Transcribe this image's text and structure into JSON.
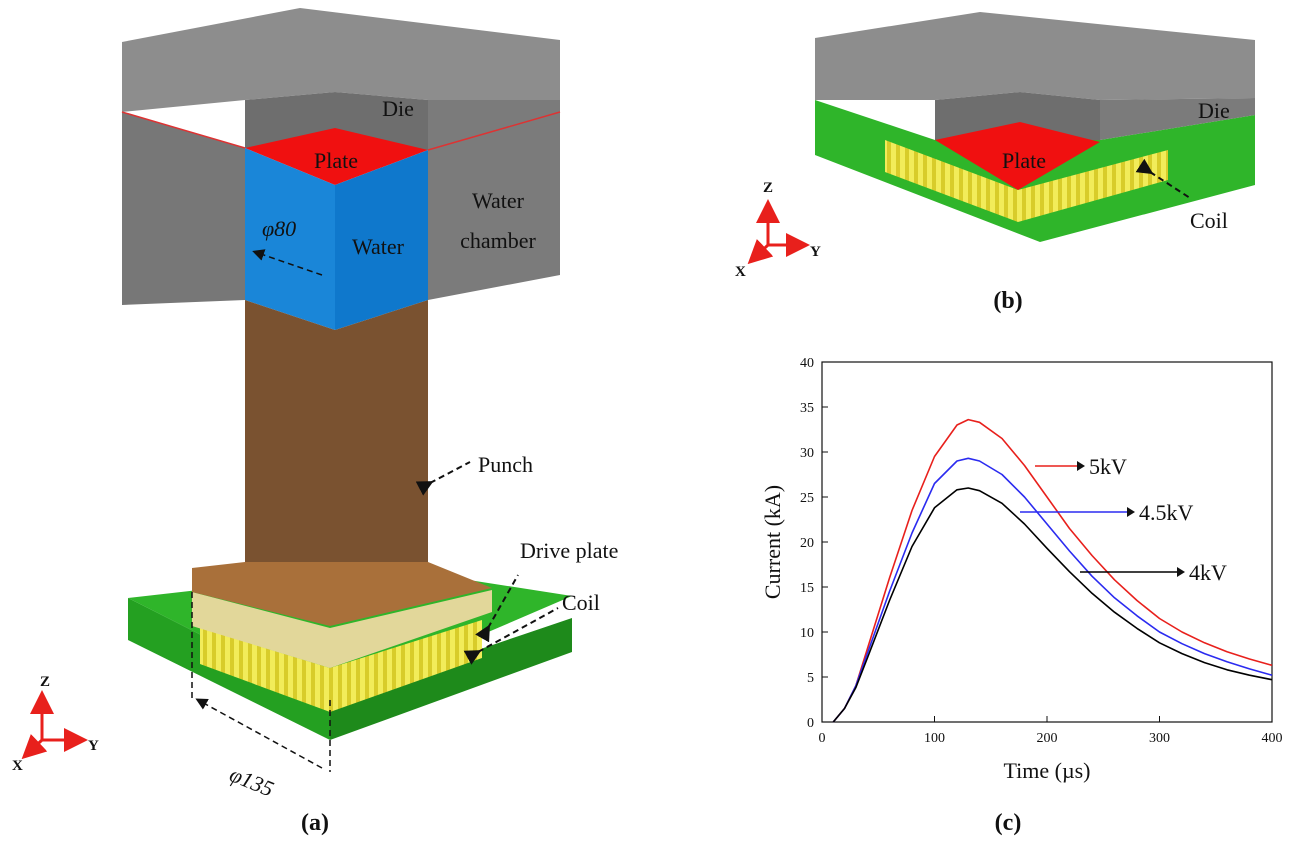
{
  "panel_a": {
    "die": "Die",
    "plate": "Plate",
    "water": "Water",
    "water_chamber": [
      "Water",
      "chamber"
    ],
    "diameter_water": "φ80",
    "punch": "Punch",
    "drive_plate": "Drive plate",
    "coil": "Coil",
    "diameter_base": "φ135",
    "axis_z": "Z",
    "axis_x": "X",
    "axis_y": "Y",
    "caption": "(a)"
  },
  "panel_b": {
    "die": "Die",
    "plate": "Plate",
    "coil": "Coil",
    "axis_z": "Z",
    "axis_x": "X",
    "axis_y": "Y",
    "caption": "(b)"
  },
  "chart_data": {
    "type": "line",
    "caption": "(c)",
    "x_label": "Time (µs)",
    "y_label": "Current (kA)",
    "x": [
      10,
      20,
      30,
      40,
      60,
      80,
      100,
      120,
      130,
      140,
      160,
      180,
      200,
      220,
      240,
      260,
      280,
      300,
      320,
      340,
      360,
      380,
      400
    ],
    "series": [
      {
        "name": "5kV",
        "color": "#e8201c",
        "values": [
          0,
          1.5,
          4,
          8,
          16,
          23.5,
          29.5,
          33,
          33.6,
          33.3,
          31.5,
          28.5,
          25,
          21.5,
          18.5,
          15.8,
          13.5,
          11.5,
          10,
          8.8,
          7.8,
          7,
          6.3
        ]
      },
      {
        "name": "4.5kV",
        "color": "#2b2bf0",
        "values": [
          0,
          1.5,
          4,
          7.5,
          14.5,
          21,
          26.5,
          29,
          29.3,
          29,
          27.5,
          25,
          22,
          19,
          16.2,
          13.8,
          11.8,
          10,
          8.7,
          7.6,
          6.7,
          5.9,
          5.2
        ]
      },
      {
        "name": "4kV",
        "color": "#000000",
        "values": [
          0,
          1.5,
          3.8,
          7,
          13.5,
          19.5,
          23.8,
          25.8,
          26,
          25.7,
          24.3,
          22,
          19.3,
          16.7,
          14.3,
          12.2,
          10.4,
          8.8,
          7.6,
          6.6,
          5.8,
          5.2,
          4.7
        ]
      }
    ],
    "xlim": [
      0,
      400
    ],
    "xticks": [
      0,
      100,
      200,
      300,
      400
    ],
    "ylim": [
      0,
      40
    ],
    "yticks": [
      0,
      5,
      10,
      15,
      20,
      25,
      30,
      35,
      40
    ]
  }
}
